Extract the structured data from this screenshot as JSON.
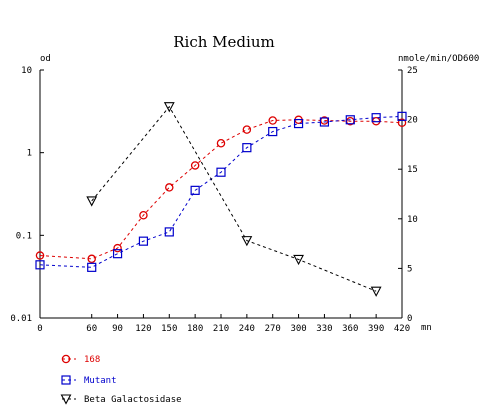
{
  "chart_data": {
    "type": "line",
    "title": "Rich Medium",
    "xlabel": "mn",
    "ylabel_left": "od",
    "ylabel_right": "nmole/min/OD600",
    "x_ticks": [
      "0",
      "60",
      "90",
      "120",
      "150",
      "180",
      "210",
      "240",
      "270",
      "300",
      "330",
      "360",
      "390",
      "420"
    ],
    "x_tick_values": [
      0,
      60,
      90,
      120,
      150,
      180,
      210,
      240,
      270,
      300,
      330,
      360,
      390,
      420
    ],
    "y_left_ticks": [
      "10",
      "1",
      "0.1",
      "0.01"
    ],
    "y_left_tick_values": [
      10,
      1,
      0.1,
      0.01
    ],
    "y_left_scale": "log",
    "y_left_range": [
      0.01,
      10
    ],
    "y_right_ticks": [
      "25",
      "20",
      "15",
      "10",
      "5",
      "0"
    ],
    "y_right_tick_values": [
      25,
      20,
      15,
      10,
      5,
      0
    ],
    "y_right_range": [
      0,
      25
    ],
    "x_range": [
      0,
      420
    ],
    "grid": false,
    "legend_position": "bottom-left",
    "series": [
      {
        "name": "168",
        "axis": "left",
        "color": "#dd0000",
        "marker": "circle",
        "x": [
          0,
          60,
          90,
          120,
          150,
          180,
          210,
          240,
          270,
          300,
          330,
          360,
          390,
          420
        ],
        "y": [
          0.057,
          0.052,
          0.07,
          0.175,
          0.38,
          0.7,
          1.3,
          1.9,
          2.45,
          2.5,
          2.45,
          2.4,
          2.4,
          2.3
        ]
      },
      {
        "name": "Mutant",
        "axis": "left",
        "color": "#0000cc",
        "marker": "square",
        "x": [
          0,
          60,
          90,
          120,
          150,
          180,
          210,
          240,
          270,
          300,
          330,
          360,
          390,
          420
        ],
        "y": [
          0.044,
          0.041,
          0.06,
          0.085,
          0.11,
          0.35,
          0.58,
          1.15,
          1.8,
          2.25,
          2.35,
          2.5,
          2.65,
          2.75
        ]
      },
      {
        "name": "Beta Galactosidase",
        "axis": "right",
        "color": "#000000",
        "marker": "triangle-down",
        "x": [
          60,
          150,
          240,
          300,
          390
        ],
        "y": [
          11.8,
          21.3,
          7.8,
          5.9,
          2.7
        ]
      }
    ]
  }
}
